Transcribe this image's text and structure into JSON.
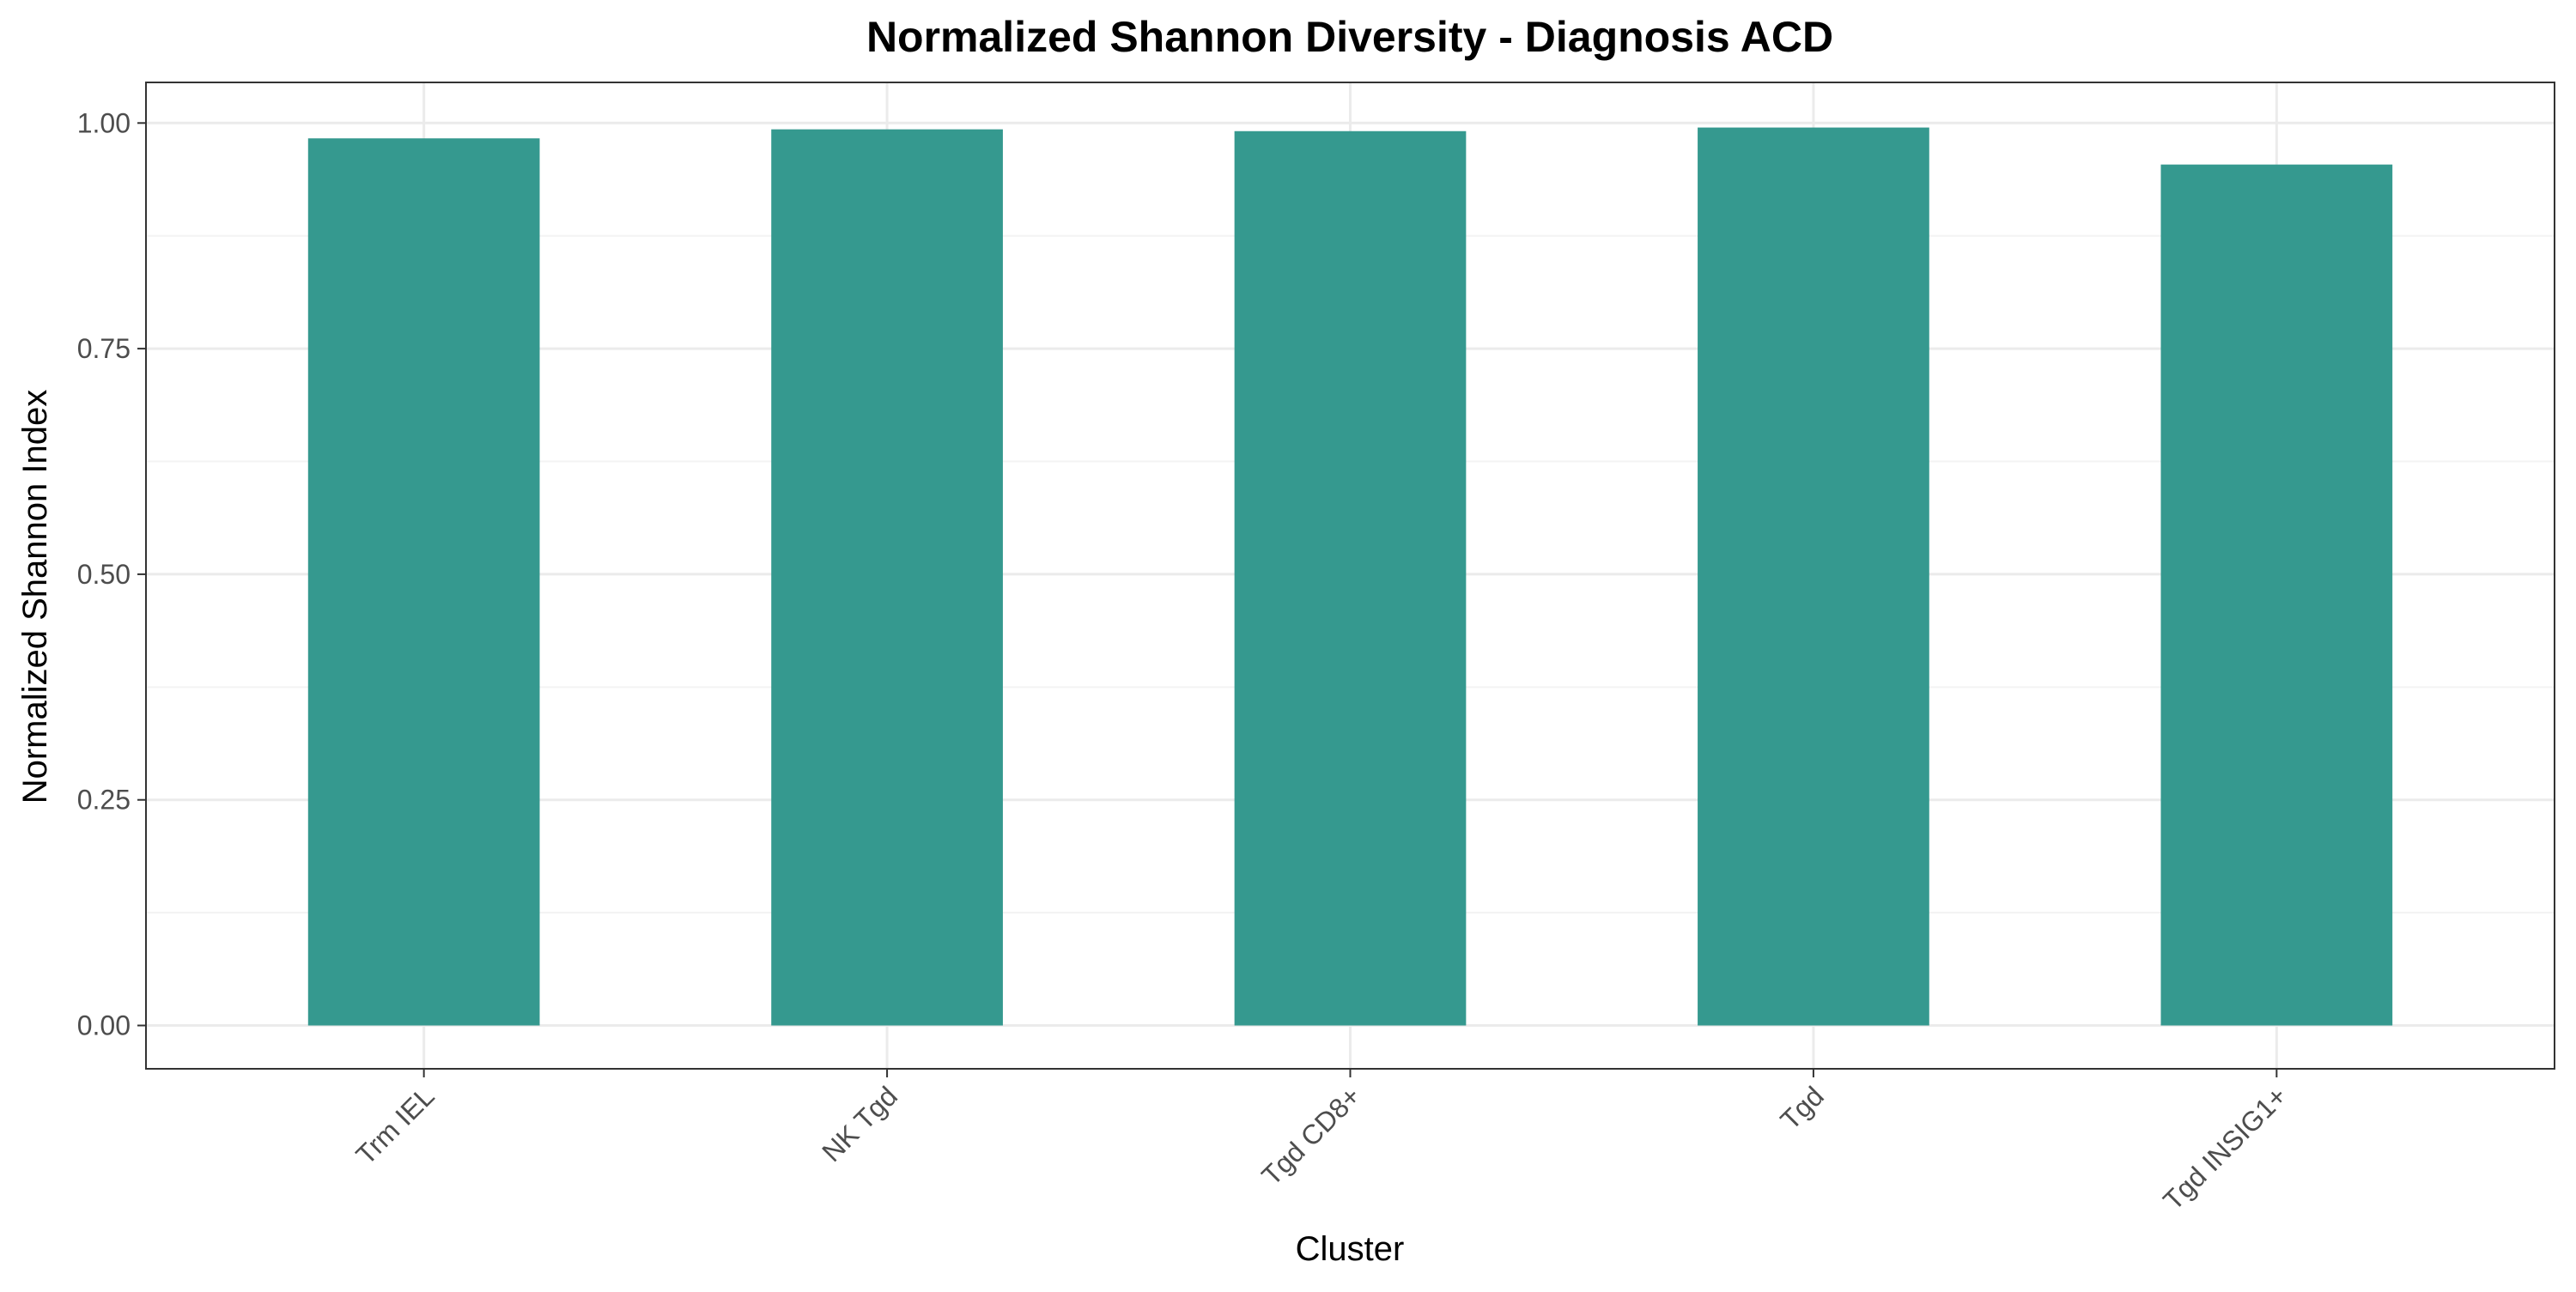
{
  "chart_data": {
    "type": "bar",
    "title": "Normalized Shannon Diversity - Diagnosis ACD",
    "xlabel": "Cluster",
    "ylabel": "Normalized Shannon Index",
    "categories": [
      "Trm IEL",
      "NK Tgd",
      "Tgd CD8+",
      "Tgd",
      "Tgd INSIG1+"
    ],
    "values": [
      0.983,
      0.993,
      0.991,
      0.995,
      0.954
    ],
    "ylim": [
      -0.048,
      1.045
    ],
    "yticks": [
      0.0,
      0.25,
      0.5,
      0.75,
      1.0
    ],
    "ytick_labels": [
      "0.00",
      "0.25",
      "0.50",
      "0.75",
      "1.00"
    ],
    "grid": true,
    "legend": "none",
    "bar_color": "#35998F"
  },
  "colors": {
    "bar": "#35998F",
    "grid_major": "#EBEBEB",
    "grid_minor": "#F3F3F3",
    "panel_border": "#333333",
    "tick_text": "#4D4D4D"
  }
}
